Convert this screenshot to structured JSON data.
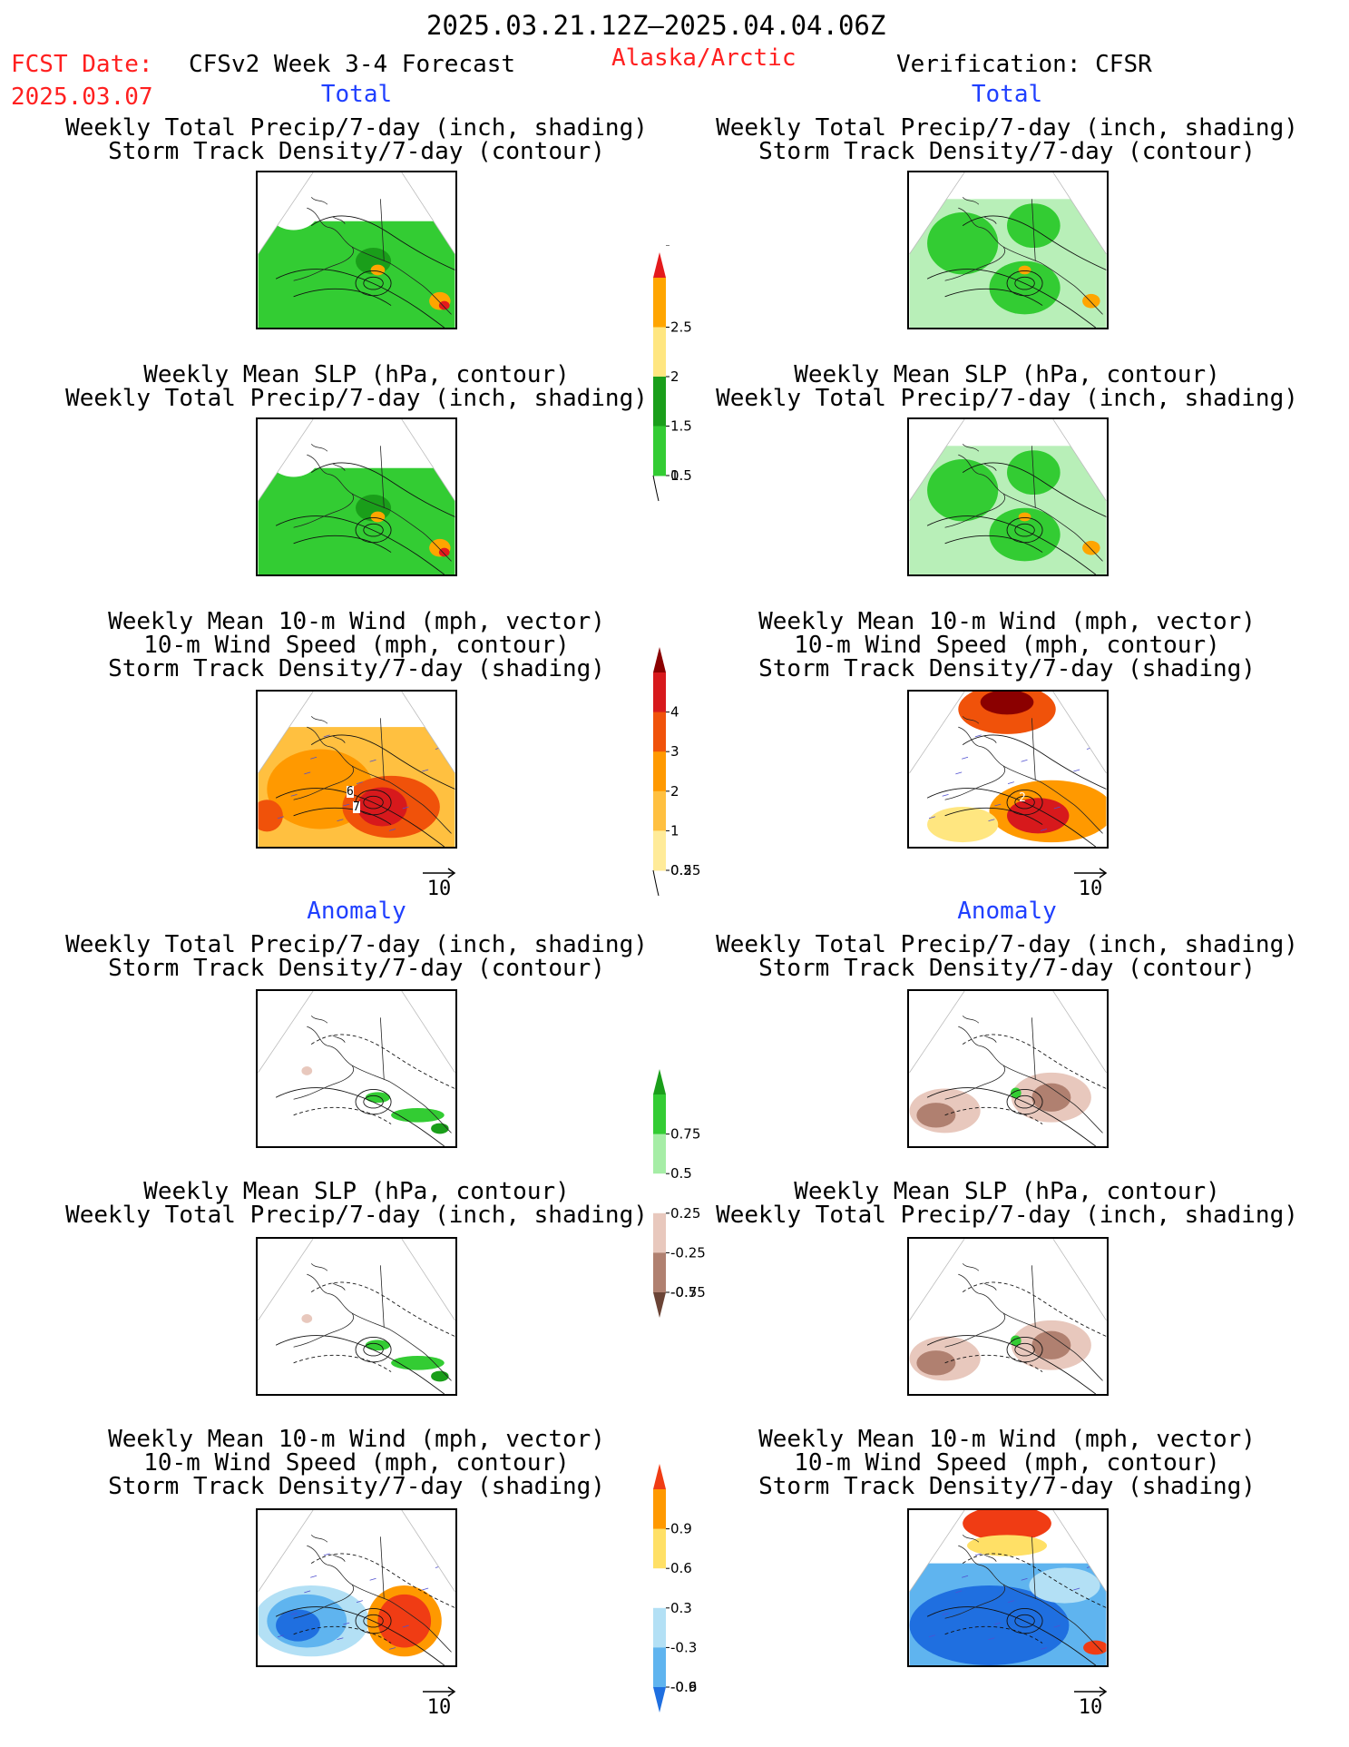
{
  "header": {
    "period": "2025.03.21.12Z–2025.04.04.06Z",
    "fcst_label": "FCST Date:",
    "fcst_date": "2025.03.07",
    "model": "CFSv2 Week 3-4 Forecast",
    "region": "Alaska/Arctic",
    "verification": "Verification: CFSR"
  },
  "sections": {
    "total": "Total",
    "anomaly": "Anomaly"
  },
  "titles": {
    "precip_shade_storm_contour": [
      "Weekly Total Precip/7-day (inch, shading)",
      "Storm Track Density/7-day (contour)"
    ],
    "slp_contour_precip_shade": [
      "Weekly Mean SLP (hPa, contour)",
      "Weekly Total Precip/7-day (inch, shading)"
    ],
    "wind_vector_speed_storm": [
      "Weekly Mean 10-m Wind (mph, vector)",
      "10-m Wind Speed (mph, contour)",
      "Storm Track Density/7-day (shading)"
    ]
  },
  "vector_reference": "10",
  "map_labels": {
    "left_total_wind": [
      "6",
      "7"
    ],
    "right_total_wind": [
      "2"
    ]
  },
  "colorbars": {
    "precip_total": {
      "labels": [
        "2.5",
        "2",
        "1.5",
        "1",
        "0.5",
        "0.25"
      ],
      "colors": [
        "#e41a1c",
        "#ffa500",
        "#ffe680",
        "#1a9e1a",
        "#33cc33",
        "#a6eda6"
      ]
    },
    "storm_total": {
      "labels": [
        "4",
        "3",
        "2",
        "1",
        "0.5",
        "0.25"
      ],
      "colors": [
        "#8b0000",
        "#d7191c",
        "#f0520a",
        "#ff9900",
        "#ffc040",
        "#ffeb99",
        "#fffacd"
      ]
    },
    "precip_anom": {
      "labels": [
        "0.75",
        "0.5",
        "0.25",
        "-0.25",
        "-0.5",
        "-0.75"
      ],
      "colors": [
        "#1a9e1a",
        "#33cc33",
        "#a6eda6",
        "#ffffff",
        "#e8c8bd",
        "#b08070",
        "#6b4436"
      ]
    },
    "storm_anom": {
      "labels": [
        "0.9",
        "0.6",
        "0.3",
        "-0.3",
        "-0.6",
        "-0.9"
      ],
      "colors": [
        "#f03c14",
        "#ff9900",
        "#ffe066",
        "#ffffff",
        "#b3e0f5",
        "#5fb4ef",
        "#1f6fe0"
      ]
    }
  },
  "panels": [
    {
      "id": "lt-precip",
      "side": "left",
      "kind": "precip",
      "fill": "#33cc33",
      "accent": "#ffa500"
    },
    {
      "id": "rt-precip",
      "side": "right",
      "kind": "precip-light",
      "fill": "#7fe07f",
      "accent": "#ffa500"
    },
    {
      "id": "lt-slp",
      "side": "left",
      "kind": "precip",
      "fill": "#33cc33",
      "accent": "#ffa500"
    },
    {
      "id": "rt-slp",
      "side": "right",
      "kind": "precip-light",
      "fill": "#7fe07f",
      "accent": "#ffa500"
    },
    {
      "id": "lt-wind",
      "side": "left",
      "kind": "storm",
      "fill": "#ff9900",
      "accent": "#d7191c"
    },
    {
      "id": "rt-wind",
      "side": "right",
      "kind": "storm-light",
      "fill": "#ffeb99",
      "accent": "#d7191c"
    },
    {
      "id": "la-precip",
      "side": "left",
      "kind": "anom-green",
      "fill": "#33cc33",
      "accent": "#e8c8bd"
    },
    {
      "id": "ra-precip",
      "side": "right",
      "kind": "anom-brown",
      "fill": "#b08070",
      "accent": "#e8c8bd"
    },
    {
      "id": "la-slp",
      "side": "left",
      "kind": "anom-green",
      "fill": "#33cc33",
      "accent": "#e8c8bd"
    },
    {
      "id": "ra-slp",
      "side": "right",
      "kind": "anom-brown",
      "fill": "#b08070",
      "accent": "#e8c8bd"
    },
    {
      "id": "la-wind",
      "side": "left",
      "kind": "anom-storm-left",
      "fill": "#5fb4ef",
      "accent": "#f03c14"
    },
    {
      "id": "ra-wind",
      "side": "right",
      "kind": "anom-storm-right",
      "fill": "#1f6fe0",
      "accent": "#f03c14"
    }
  ]
}
